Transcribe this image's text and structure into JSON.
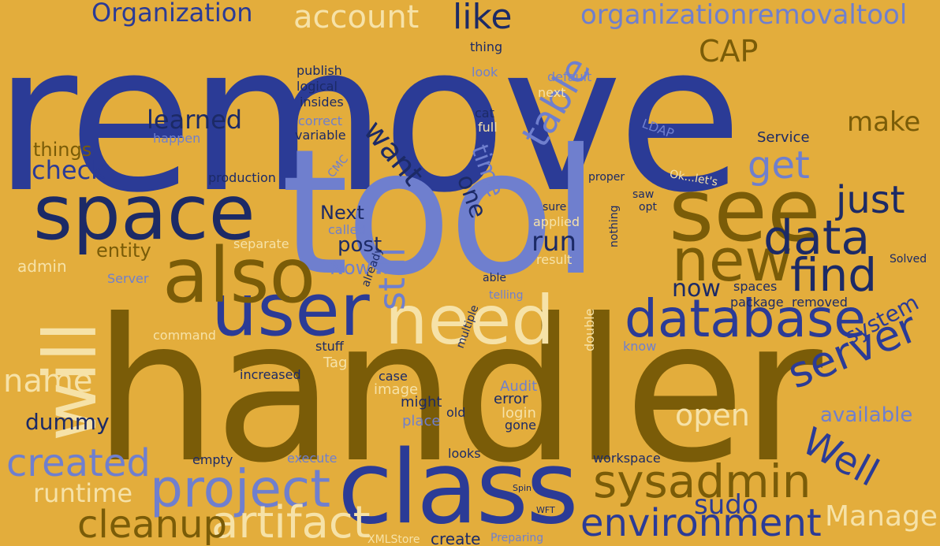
{
  "background": "#e3ad3c",
  "palette": {
    "dark_navy": "#1c2a66",
    "royal_blue": "#2b3b96",
    "periwinkle": "#6f7fce",
    "olive_brown": "#7a5c08",
    "light_cream": "#f6e2a8"
  },
  "words": [
    "remove",
    "handler",
    "tool",
    "class",
    "space",
    "user",
    "database",
    "also",
    "see",
    "need",
    "new",
    "find",
    "data",
    "will",
    "project",
    "sysadmin",
    "artifact",
    "environment",
    "server",
    "cleanup",
    "created",
    "Organization",
    "organizationremovaltool",
    "account",
    "like",
    "CAP",
    "get",
    "just",
    "Well",
    "open",
    "name",
    "runtime",
    "dummy",
    "available",
    "Manage",
    "sudo",
    "make",
    "learned",
    "check",
    "things",
    "entity",
    "admin",
    "table",
    "want",
    "still",
    "time",
    "one",
    "run",
    "post",
    "Now",
    "Next",
    "now",
    "spaces",
    "Service",
    "system",
    "command",
    "image",
    "might",
    "case",
    "Audit",
    "error",
    "login",
    "gone",
    "place",
    "old",
    "looks",
    "create",
    "execute",
    "empty",
    "XMLStore",
    "workspace",
    "package",
    "removed",
    "Solved",
    "know",
    "double",
    "stuff",
    "Tag",
    "increased",
    "production",
    "separate",
    "called",
    "applied",
    "sure",
    "result",
    "nothing",
    "able",
    "telling",
    "logical",
    "publish",
    "insides",
    "thing",
    "look",
    "default",
    "next",
    "correct",
    "variable",
    "cat",
    "full",
    "happen",
    "already",
    "multiple",
    "proper",
    "saw",
    "opt",
    "LDAP",
    "CMC",
    "Preparing",
    "Server",
    "Ok...let's",
    "WFT",
    "Spin"
  ]
}
